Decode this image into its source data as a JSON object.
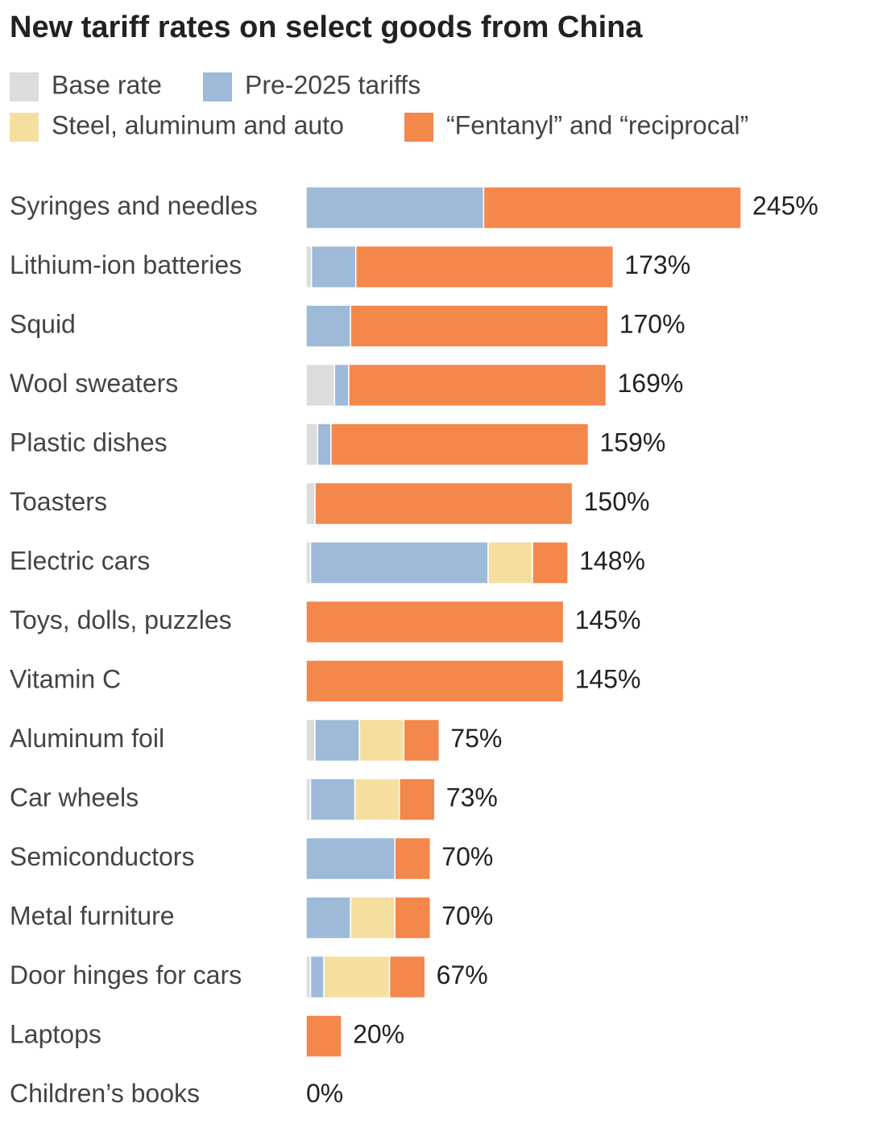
{
  "chart_data": {
    "type": "stacked-bar-horizontal",
    "title": "New tariff rates on select goods from China",
    "categories": [
      "Syringes and needles",
      "Lithium-ion batteries",
      "Squid",
      "Wool sweaters",
      "Plastic dishes",
      "Toasters",
      "Electric cars",
      "Toys, dolls, puzzles",
      "Vitamin C",
      "Aluminum foil",
      "Car wheels",
      "Semiconductors",
      "Metal furniture",
      "Door hinges for cars",
      "Laptops",
      "Children’s books"
    ],
    "series": [
      {
        "name": "Base rate",
        "color": "#dcdcdc",
        "values": [
          0,
          3,
          0,
          16,
          6.5,
          5,
          2.5,
          0,
          0,
          5,
          2.5,
          0,
          0,
          2.5,
          0,
          0
        ]
      },
      {
        "name": "Pre-2025 tariffs",
        "color": "#9dbad8",
        "values": [
          100,
          25,
          25,
          8,
          7.5,
          0,
          100,
          0,
          0,
          25,
          25,
          50,
          25,
          7.5,
          0,
          0
        ]
      },
      {
        "name": "Steel, aluminum and auto",
        "color": "#f6df9e",
        "values": [
          0,
          0,
          0,
          0,
          0,
          0,
          25,
          0,
          0,
          25,
          25,
          0,
          25,
          37,
          0,
          0
        ]
      },
      {
        "name": "“Fentanyl” and “reciprocal”",
        "color": "#f4874b",
        "values": [
          145,
          145,
          145,
          145,
          145,
          145,
          20,
          145,
          145,
          20,
          20,
          20,
          20,
          20,
          20,
          0
        ]
      }
    ],
    "value_labels": [
      "245%",
      "173%",
      "170%",
      "169%",
      "159%",
      "150%",
      "148%",
      "145%",
      "145%",
      "75%",
      "73%",
      "70%",
      "70%",
      "67%",
      "20%",
      "0%"
    ]
  }
}
